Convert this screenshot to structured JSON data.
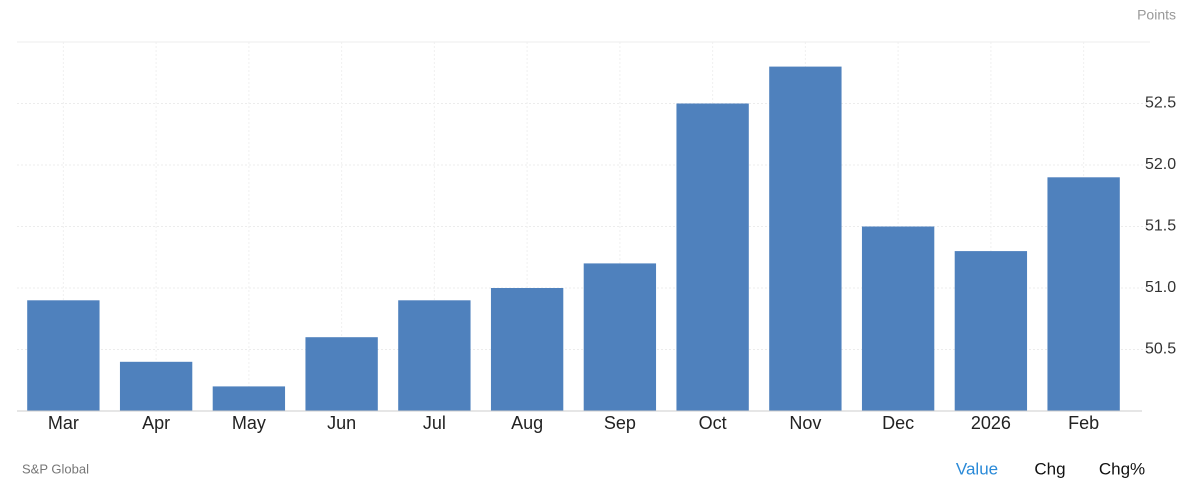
{
  "chart_data": {
    "type": "bar",
    "unit_label": "Points",
    "source": "S&P Global",
    "categories": [
      "Mar",
      "Apr",
      "May",
      "Jun",
      "Jul",
      "Aug",
      "Sep",
      "Oct",
      "Nov",
      "Dec",
      "2026",
      "Feb"
    ],
    "values": [
      50.9,
      50.4,
      50.2,
      50.6,
      50.9,
      51.0,
      51.2,
      52.5,
      52.8,
      51.5,
      51.3,
      51.9
    ],
    "color": "#4f81bd",
    "ylim": [
      50,
      53
    ],
    "yticks": [
      50.5,
      {
        "value": 51,
        "label": "51.0"
      },
      51.5,
      {
        "value": 52,
        "label": "52.0"
      },
      52.5
    ],
    "grid": true
  },
  "controls": [
    "Value",
    "Chg",
    "Chg%"
  ]
}
